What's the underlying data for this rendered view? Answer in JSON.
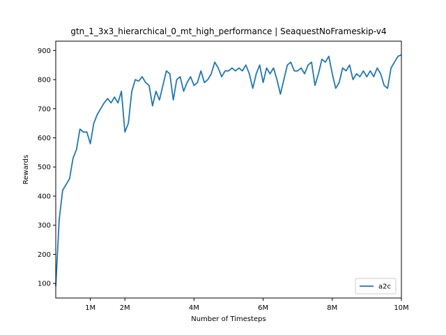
{
  "chart_data": {
    "type": "line",
    "title": "gtn_1_3x3_hierarchical_0_mt_high_performance | SeaquestNoFrameskip-v4",
    "xlabel": "Number of Timesteps",
    "ylabel": "Rewards",
    "x": [
      0,
      100000,
      200000,
      300000,
      400000,
      500000,
      600000,
      700000,
      800000,
      900000,
      1000000,
      1100000,
      1200000,
      1300000,
      1400000,
      1500000,
      1600000,
      1700000,
      1800000,
      1900000,
      2000000,
      2100000,
      2200000,
      2300000,
      2400000,
      2500000,
      2600000,
      2700000,
      2800000,
      2900000,
      3000000,
      3100000,
      3200000,
      3300000,
      3400000,
      3500000,
      3600000,
      3700000,
      3800000,
      3900000,
      4000000,
      4100000,
      4200000,
      4300000,
      4400000,
      4500000,
      4600000,
      4700000,
      4800000,
      4900000,
      5000000,
      5100000,
      5200000,
      5300000,
      5400000,
      5500000,
      5600000,
      5700000,
      5800000,
      5900000,
      6000000,
      6100000,
      6200000,
      6300000,
      6400000,
      6500000,
      6600000,
      6700000,
      6800000,
      6900000,
      7000000,
      7100000,
      7200000,
      7300000,
      7400000,
      7500000,
      7600000,
      7700000,
      7800000,
      7900000,
      8000000,
      8100000,
      8200000,
      8300000,
      8400000,
      8500000,
      8600000,
      8700000,
      8800000,
      8900000,
      9000000,
      9100000,
      9200000,
      9300000,
      9400000,
      9500000,
      9600000,
      9700000,
      9800000,
      9900000,
      10000000
    ],
    "series": [
      {
        "name": "a2c",
        "color": "#1f77b4",
        "values": [
          90,
          320,
          420,
          440,
          460,
          530,
          560,
          630,
          620,
          620,
          580,
          650,
          680,
          700,
          720,
          735,
          720,
          740,
          720,
          760,
          620,
          650,
          760,
          800,
          795,
          810,
          790,
          780,
          710,
          760,
          730,
          780,
          830,
          820,
          730,
          800,
          810,
          760,
          790,
          810,
          780,
          790,
          830,
          790,
          800,
          820,
          860,
          840,
          810,
          830,
          830,
          840,
          830,
          840,
          830,
          850,
          820,
          770,
          820,
          850,
          790,
          840,
          820,
          840,
          800,
          750,
          800,
          850,
          860,
          830,
          830,
          840,
          820,
          850,
          860,
          780,
          820,
          870,
          860,
          880,
          820,
          770,
          790,
          840,
          830,
          850,
          800,
          820,
          810,
          830,
          810,
          830,
          810,
          840,
          820,
          780,
          770,
          840,
          860,
          880,
          885
        ]
      }
    ],
    "xlim": [
      0,
      10000000
    ],
    "ylim": [
      50,
      932
    ],
    "xticks": [
      {
        "value": 1000000,
        "label": "1M"
      },
      {
        "value": 2000000,
        "label": "2M"
      },
      {
        "value": 4000000,
        "label": "4M"
      },
      {
        "value": 6000000,
        "label": "6M"
      },
      {
        "value": 8000000,
        "label": "8M"
      },
      {
        "value": 10000000,
        "label": "10M"
      }
    ],
    "yticks": [
      100,
      200,
      300,
      400,
      500,
      600,
      700,
      800,
      900
    ],
    "legend": "lower right"
  }
}
